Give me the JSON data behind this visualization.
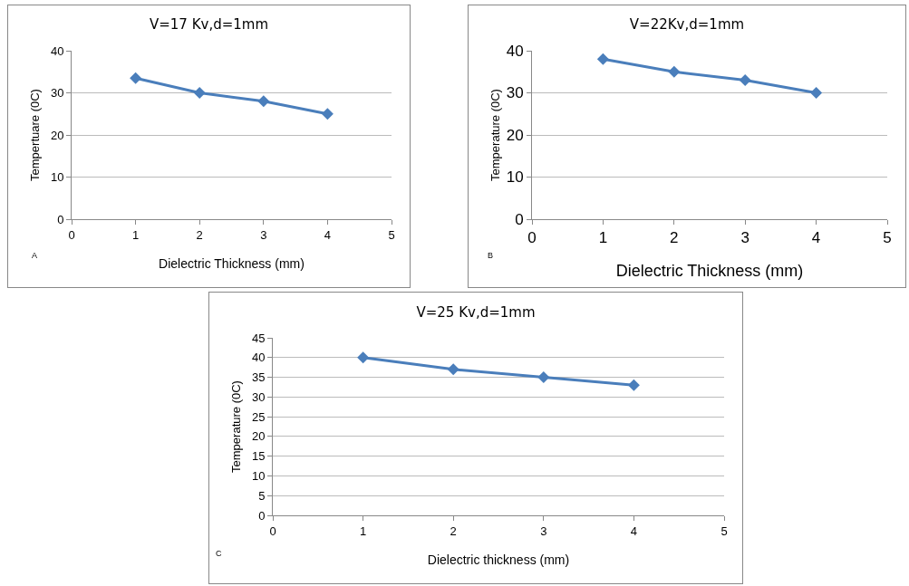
{
  "chart_data": [
    {
      "type": "line",
      "title": "V=17 Kv,d=1mm",
      "xlabel": "Dielectric Thickness (mm)",
      "ylabel": "Tempertuare (0C)",
      "annotations": [
        "A"
      ],
      "x": [
        1,
        2,
        3,
        4
      ],
      "series": [
        {
          "color": "#4a7ebb",
          "values": [
            33.5,
            30,
            28,
            25
          ]
        }
      ],
      "xlim": [
        0,
        5
      ],
      "xticks": [
        0,
        1,
        2,
        3,
        4,
        5
      ],
      "ylim": [
        0,
        40
      ],
      "yticks": [
        0,
        10,
        20,
        30,
        40
      ],
      "grid": "y",
      "marker": "diamond",
      "line_style": "solid"
    },
    {
      "type": "line",
      "title": "V=22Kv,d=1mm",
      "xlabel": "Dielectric Thickness (mm)",
      "ylabel": "Temperature (0C)",
      "annotations": [
        "B"
      ],
      "x": [
        1,
        2,
        3,
        4
      ],
      "series": [
        {
          "color": "#4a7ebb",
          "values": [
            38,
            35,
            33,
            30
          ]
        }
      ],
      "xlim": [
        0,
        5
      ],
      "xticks": [
        0,
        1,
        2,
        3,
        4,
        5
      ],
      "ylim": [
        0,
        40
      ],
      "yticks": [
        0,
        10,
        20,
        30,
        40
      ],
      "grid": "y",
      "marker": "diamond",
      "line_style": "solid"
    },
    {
      "type": "line",
      "title": "V=25 Kv,d=1mm",
      "xlabel": "Dielectric thickness (mm)",
      "ylabel": "Temperature (0C)",
      "annotations": [
        "C"
      ],
      "x": [
        1,
        2,
        3,
        4
      ],
      "series": [
        {
          "color": "#4a7ebb",
          "values": [
            40,
            37,
            35,
            33
          ]
        }
      ],
      "xlim": [
        0,
        5
      ],
      "xticks": [
        0,
        1,
        2,
        3,
        4,
        5
      ],
      "ylim": [
        0,
        45
      ],
      "yticks": [
        0,
        5,
        10,
        15,
        20,
        25,
        30,
        35,
        40,
        45
      ],
      "grid": "y",
      "marker": "diamond",
      "line_style": "solid"
    }
  ]
}
